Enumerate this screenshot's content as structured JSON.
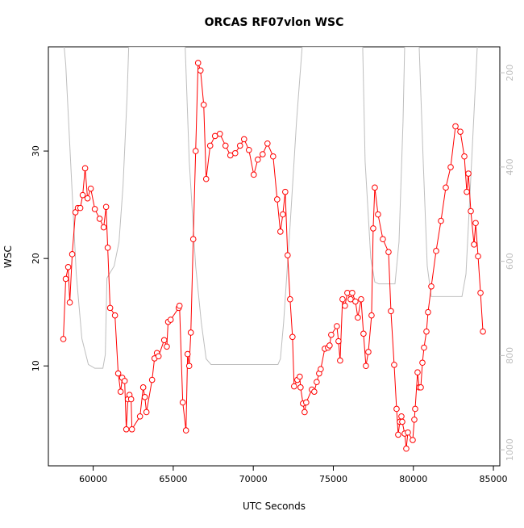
{
  "chart_data": {
    "type": "line",
    "title": "ORCAS RF07vlon WSC",
    "xlabel": "UTC Seconds",
    "ylabel": "WSC",
    "xlim": [
      57200,
      85400
    ],
    "xticks": [
      60000,
      65000,
      70000,
      75000,
      80000,
      85000
    ],
    "ylim": [
      0.7,
      39.7
    ],
    "yticks": [
      10,
      20,
      30
    ],
    "y2lim": [
      1034,
      145
    ],
    "y2ticks": [
      200,
      400,
      600,
      800,
      1000
    ],
    "series": [
      {
        "color": "#ff0000",
        "axis": "y",
        "marker": "circle",
        "x": [
          58135,
          58286,
          58438,
          58538,
          58690,
          58891,
          59042,
          59194,
          59345,
          59496,
          59647,
          59849,
          60101,
          60403,
          60655,
          60806,
          60907,
          61058,
          61361,
          61562,
          61714,
          61815,
          61966,
          62067,
          62167,
          62268,
          62369,
          62419,
          62923,
          63125,
          63226,
          63327,
          63679,
          63831,
          63982,
          64083,
          64435,
          64600,
          64680,
          64839,
          65343,
          65393,
          65595,
          65796,
          65897,
          65998,
          66099,
          66250,
          66401,
          66552,
          66704,
          66905,
          67056,
          67308,
          67611,
          67913,
          68266,
          68569,
          68871,
          69173,
          69425,
          69728,
          70030,
          70282,
          70585,
          70887,
          71240,
          71492,
          71694,
          71845,
          71996,
          72147,
          72298,
          72450,
          72550,
          72752,
          72903,
          72954,
          73105,
          73206,
          73306,
          73659,
          73810,
          73962,
          74113,
          74214,
          74466,
          74667,
          74768,
          74869,
          75222,
          75323,
          75423,
          75575,
          75726,
          75877,
          76079,
          76179,
          76381,
          76532,
          76734,
          76885,
          77036,
          77188,
          77389,
          77490,
          77591,
          77792,
          78095,
          78448,
          78599,
          78800,
          78952,
          79052,
          79153,
          79254,
          79304,
          79456,
          79556,
          79657,
          79960,
          80060,
          80111,
          80262,
          80363,
          80464,
          80565,
          80665,
          80817,
          80917,
          81119,
          81421,
          81724,
          82026,
          82329,
          82631,
          82933,
          83185,
          83337,
          83438,
          83589,
          83790,
          83891,
          84042,
          84194,
          84345
        ],
        "values": [
          12.5,
          18.1,
          19.2,
          15.9,
          20.4,
          24.3,
          24.7,
          24.7,
          25.9,
          28.4,
          25.6,
          26.5,
          24.6,
          23.7,
          22.9,
          24.8,
          21.0,
          15.4,
          14.7,
          9.3,
          7.6,
          8.9,
          8.6,
          4.1,
          6.9,
          7.3,
          6.9,
          4.1,
          5.3,
          8.0,
          7.1,
          5.7,
          8.7,
          10.7,
          11.2,
          10.9,
          12.4,
          11.8,
          14.1,
          14.3,
          15.4,
          15.6,
          6.6,
          4.0,
          11.1,
          10.0,
          13.1,
          21.8,
          30.0,
          38.2,
          37.5,
          34.3,
          27.4,
          30.5,
          31.4,
          31.6,
          30.5,
          29.6,
          29.8,
          30.5,
          31.1,
          30.1,
          27.8,
          29.2,
          29.7,
          30.7,
          29.5,
          25.5,
          22.5,
          24.1,
          26.2,
          20.3,
          16.2,
          12.7,
          8.1,
          8.7,
          9.0,
          8.0,
          6.5,
          5.7,
          6.6,
          7.8,
          7.6,
          8.5,
          9.3,
          9.7,
          11.6,
          11.7,
          11.9,
          12.9,
          13.7,
          12.3,
          10.5,
          16.2,
          15.6,
          16.8,
          16.2,
          16.8,
          16.0,
          14.5,
          16.2,
          13.0,
          10.0,
          11.3,
          14.7,
          22.8,
          26.6,
          24.1,
          21.8,
          20.6,
          15.1,
          10.1,
          6.0,
          3.6,
          4.8,
          5.3,
          4.8,
          3.7,
          2.3,
          3.8,
          3.1,
          5.0,
          6.0,
          9.4,
          8.0,
          8.0,
          10.3,
          11.7,
          13.2,
          15.0,
          17.4,
          20.7,
          23.5,
          26.6,
          28.5,
          32.3,
          31.8,
          29.5,
          26.2,
          27.9,
          24.4,
          21.3,
          23.3,
          20.2,
          16.8,
          13.2
        ]
      },
      {
        "color": "#bebebe",
        "axis": "y2",
        "x": [
          58185,
          58286,
          58589,
          58942,
          59294,
          59698,
          60101,
          60605,
          60756,
          60857,
          61008,
          61310,
          61613,
          61865,
          62117,
          62218,
          65746,
          66000,
          66400,
          66754,
          67056,
          67359,
          69274,
          71542,
          71694,
          71895,
          72298,
          72702,
          73054,
          76835,
          76986,
          77339,
          77591,
          77843,
          78851,
          79103,
          79355,
          79456,
          80363,
          80615,
          80867,
          81119,
          81623,
          83034,
          83286,
          83639,
          83992
        ],
        "values": [
          145,
          183,
          388,
          627,
          764,
          819,
          827,
          827,
          798,
          636,
          627,
          610,
          559,
          439,
          251,
          145,
          145,
          388,
          610,
          730,
          807,
          819,
          819,
          819,
          807,
          730,
          525,
          303,
          145,
          145,
          388,
          593,
          644,
          648,
          648,
          559,
          303,
          145,
          145,
          388,
          610,
          675,
          675,
          675,
          627,
          388,
          145
        ]
      }
    ]
  }
}
